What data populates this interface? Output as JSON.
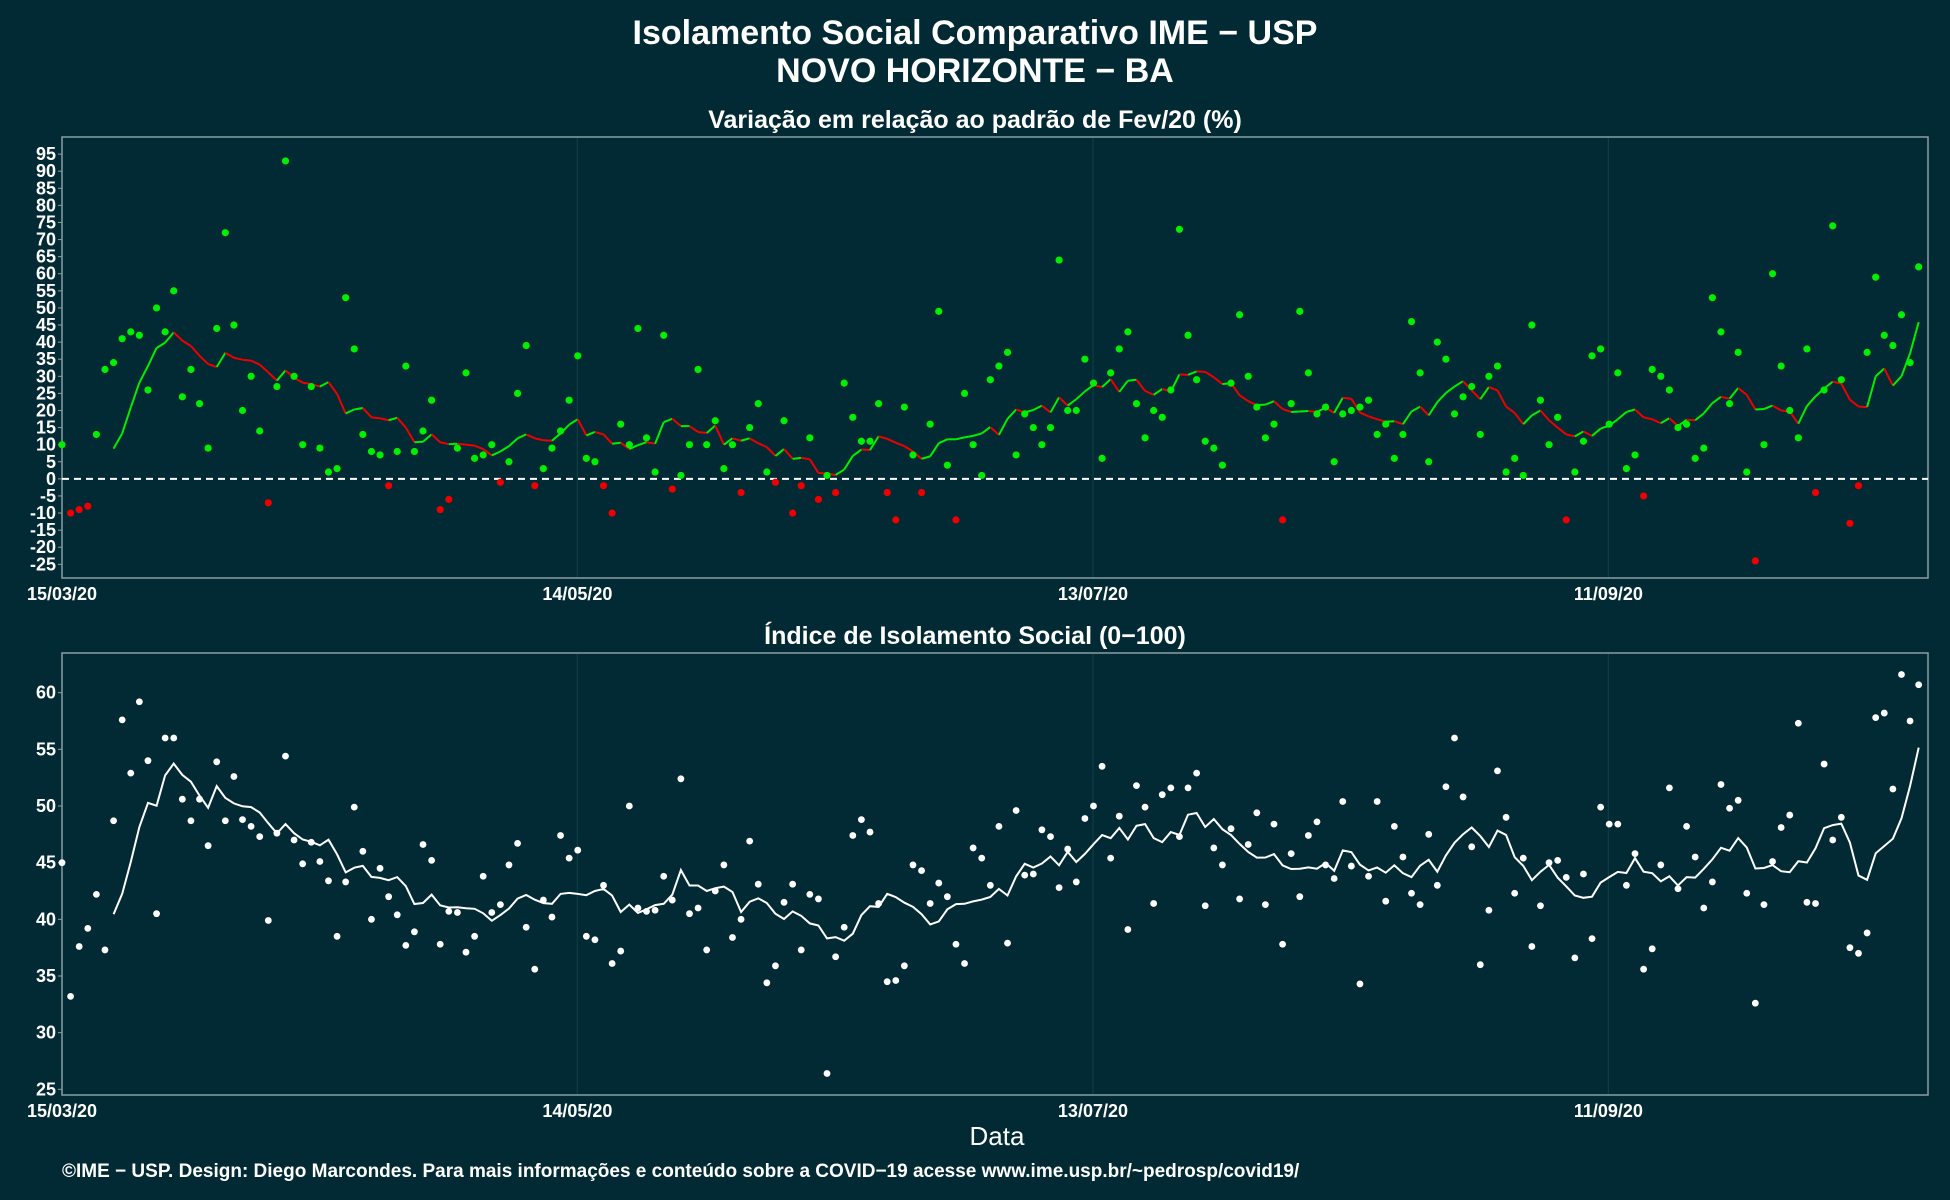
{
  "title_line1": "Isolamento Social Comparativo IME − USP",
  "title_line2": "NOVO HORIZONTE − BA",
  "credit": "©IME − USP. Design: Diego Marcondes. Para mais informações e conteúdo sobre a COVID−19 acesse www.ime.usp.br/~pedrosp/covid19/",
  "colors": {
    "background": "#022a34",
    "positive": "#00ee00",
    "negative": "#ee0000",
    "index": "#ffffff",
    "frame": "#8a9ea3",
    "grid": "#0f3c47"
  },
  "chart_data": [
    {
      "type": "scatter",
      "title": "Variação em relação ao padrão de Fev/20 (%)",
      "xlabel": "",
      "ylabel": "",
      "x_ticks": [
        "15/03/20",
        "14/05/20",
        "13/07/20",
        "11/09/20"
      ],
      "x_range": [
        "15/03/20",
        "27/10/20"
      ],
      "y_ticks": [
        95,
        90,
        85,
        80,
        75,
        70,
        65,
        60,
        55,
        50,
        45,
        40,
        35,
        30,
        25,
        20,
        15,
        10,
        5,
        0,
        -5,
        -10,
        -15,
        -20,
        -25
      ],
      "ylim": [
        -29,
        100
      ],
      "reference_line": 0,
      "grid": true,
      "series": [
        {
          "style": "points + 7-day moving average line (green above 0 trend, red when falling)",
          "values": [
            10,
            -10,
            -9,
            -8,
            13,
            32,
            34,
            41,
            43,
            42,
            26,
            50,
            43,
            55,
            24,
            32,
            22,
            9,
            44,
            72,
            45,
            20,
            30,
            14,
            -7,
            27,
            93,
            30,
            10,
            27,
            9,
            2,
            3,
            53,
            38,
            13,
            8,
            7,
            -2,
            8,
            33,
            8,
            14,
            23,
            -9,
            -6,
            9,
            31,
            6,
            7,
            10,
            -1,
            5,
            25,
            39,
            -2,
            3,
            9,
            14,
            23,
            36,
            6,
            5,
            -2,
            -10,
            16,
            10,
            44,
            12,
            2,
            42,
            -3,
            1,
            10,
            32,
            10,
            17,
            3,
            10,
            -4,
            15,
            22,
            2,
            -1,
            17,
            -10,
            -2,
            12,
            -6,
            1,
            -4,
            28,
            18,
            11,
            11,
            22,
            -4,
            -12,
            21,
            7,
            -4,
            16,
            49,
            4,
            -12,
            25,
            10,
            1,
            29,
            33,
            37,
            7,
            19,
            15,
            10,
            15,
            64,
            20,
            20,
            35,
            28,
            6,
            31,
            38,
            43,
            22,
            12,
            20,
            18,
            26,
            73,
            42,
            29,
            11,
            9,
            4,
            28,
            48,
            30,
            21,
            12,
            16,
            -12,
            22,
            49,
            31,
            19,
            21,
            5,
            19,
            20,
            21,
            23,
            13,
            16,
            6,
            13,
            46,
            31,
            5,
            40,
            35,
            19,
            24,
            27,
            13,
            30,
            33,
            2,
            6,
            1,
            45,
            23,
            10,
            18,
            -12,
            2,
            11,
            36,
            38,
            16,
            31,
            3,
            7,
            -5,
            32,
            30,
            26,
            15,
            16,
            6,
            9,
            53,
            43,
            22,
            37,
            2,
            -24,
            10,
            60,
            33,
            20,
            12,
            38,
            -4,
            26,
            74,
            29,
            -13,
            -2,
            37,
            59,
            42,
            39,
            48,
            34,
            62
          ]
        }
      ]
    },
    {
      "type": "scatter",
      "title": "Índice de Isolamento Social (0−100)",
      "xlabel": "Data",
      "ylabel": "",
      "x_ticks": [
        "15/03/20",
        "14/05/20",
        "13/07/20",
        "11/09/20"
      ],
      "x_range": [
        "15/03/20",
        "27/10/20"
      ],
      "y_ticks": [
        60,
        55,
        50,
        45,
        40,
        35,
        30,
        25
      ],
      "ylim": [
        24.5,
        63.5
      ],
      "grid": true,
      "series": [
        {
          "style": "points + 7-day moving average line",
          "values": [
            45,
            33.2,
            37.6,
            39.2,
            42.2,
            37.3,
            48.7,
            57.6,
            52.9,
            59.2,
            54,
            40.5,
            56,
            56,
            50.6,
            48.7,
            50.6,
            46.5,
            53.9,
            48.7,
            52.6,
            48.8,
            48.2,
            47.3,
            39.9,
            47.6,
            54.4,
            47,
            44.9,
            46.8,
            45.1,
            43.4,
            38.5,
            43.3,
            49.9,
            46,
            40,
            44.5,
            42,
            40.4,
            37.7,
            38.9,
            46.6,
            45.2,
            37.8,
            40.7,
            40.6,
            37.1,
            38.5,
            43.8,
            40.6,
            41.3,
            44.8,
            46.7,
            39.3,
            35.6,
            41.7,
            40.2,
            47.4,
            45.4,
            46.1,
            38.5,
            38.2,
            43,
            36.1,
            37.2,
            50,
            41,
            40.7,
            40.8,
            43.8,
            41.7,
            52.4,
            40.5,
            41,
            37.3,
            42.5,
            44.8,
            38.4,
            40,
            46.9,
            43.1,
            34.4,
            35.9,
            41.5,
            43.1,
            37.3,
            42.2,
            41.8,
            26.4,
            36.7,
            39.3,
            47.4,
            48.8,
            47.7,
            41.4,
            34.5,
            34.6,
            35.9,
            44.8,
            44.3,
            41.4,
            43.2,
            42,
            37.8,
            36.1,
            46.3,
            45.4,
            43,
            48.2,
            37.9,
            49.6,
            43.9,
            44,
            47.9,
            47.3,
            42.8,
            46.2,
            43.3,
            48.9,
            50,
            53.5,
            45.4,
            49.1,
            39.1,
            51.8,
            49.9,
            41.4,
            51,
            51.6,
            47.3,
            51.6,
            52.9,
            41.2,
            46.3,
            44.8,
            48,
            41.8,
            46.6,
            49.4,
            41.3,
            48.4,
            37.8,
            45.8,
            42,
            47.4,
            48.6,
            44.8,
            43.6,
            50.4,
            44.7,
            34.3,
            43.8,
            50.4,
            41.6,
            48.2,
            45.5,
            42.3,
            41.3,
            47.5,
            43,
            51.7,
            56,
            50.8,
            46.4,
            36,
            40.8,
            53.1,
            49,
            42.3,
            45.4,
            37.6,
            41.2,
            45,
            45.2,
            43.7,
            36.6,
            44,
            38.3,
            49.9,
            48.4,
            48.4,
            43,
            45.8,
            35.6,
            37.4,
            44.8,
            51.6,
            42.7,
            48.2,
            45.5,
            41,
            43.3,
            51.9,
            49.8,
            50.5,
            42.3,
            32.6,
            41.3,
            45.1,
            48.1,
            49.2,
            57.3,
            41.5,
            41.4,
            53.7,
            47,
            49,
            37.5,
            37,
            38.8,
            57.8,
            58.2,
            51.5,
            61.6,
            57.5,
            60.7
          ]
        }
      ]
    }
  ]
}
